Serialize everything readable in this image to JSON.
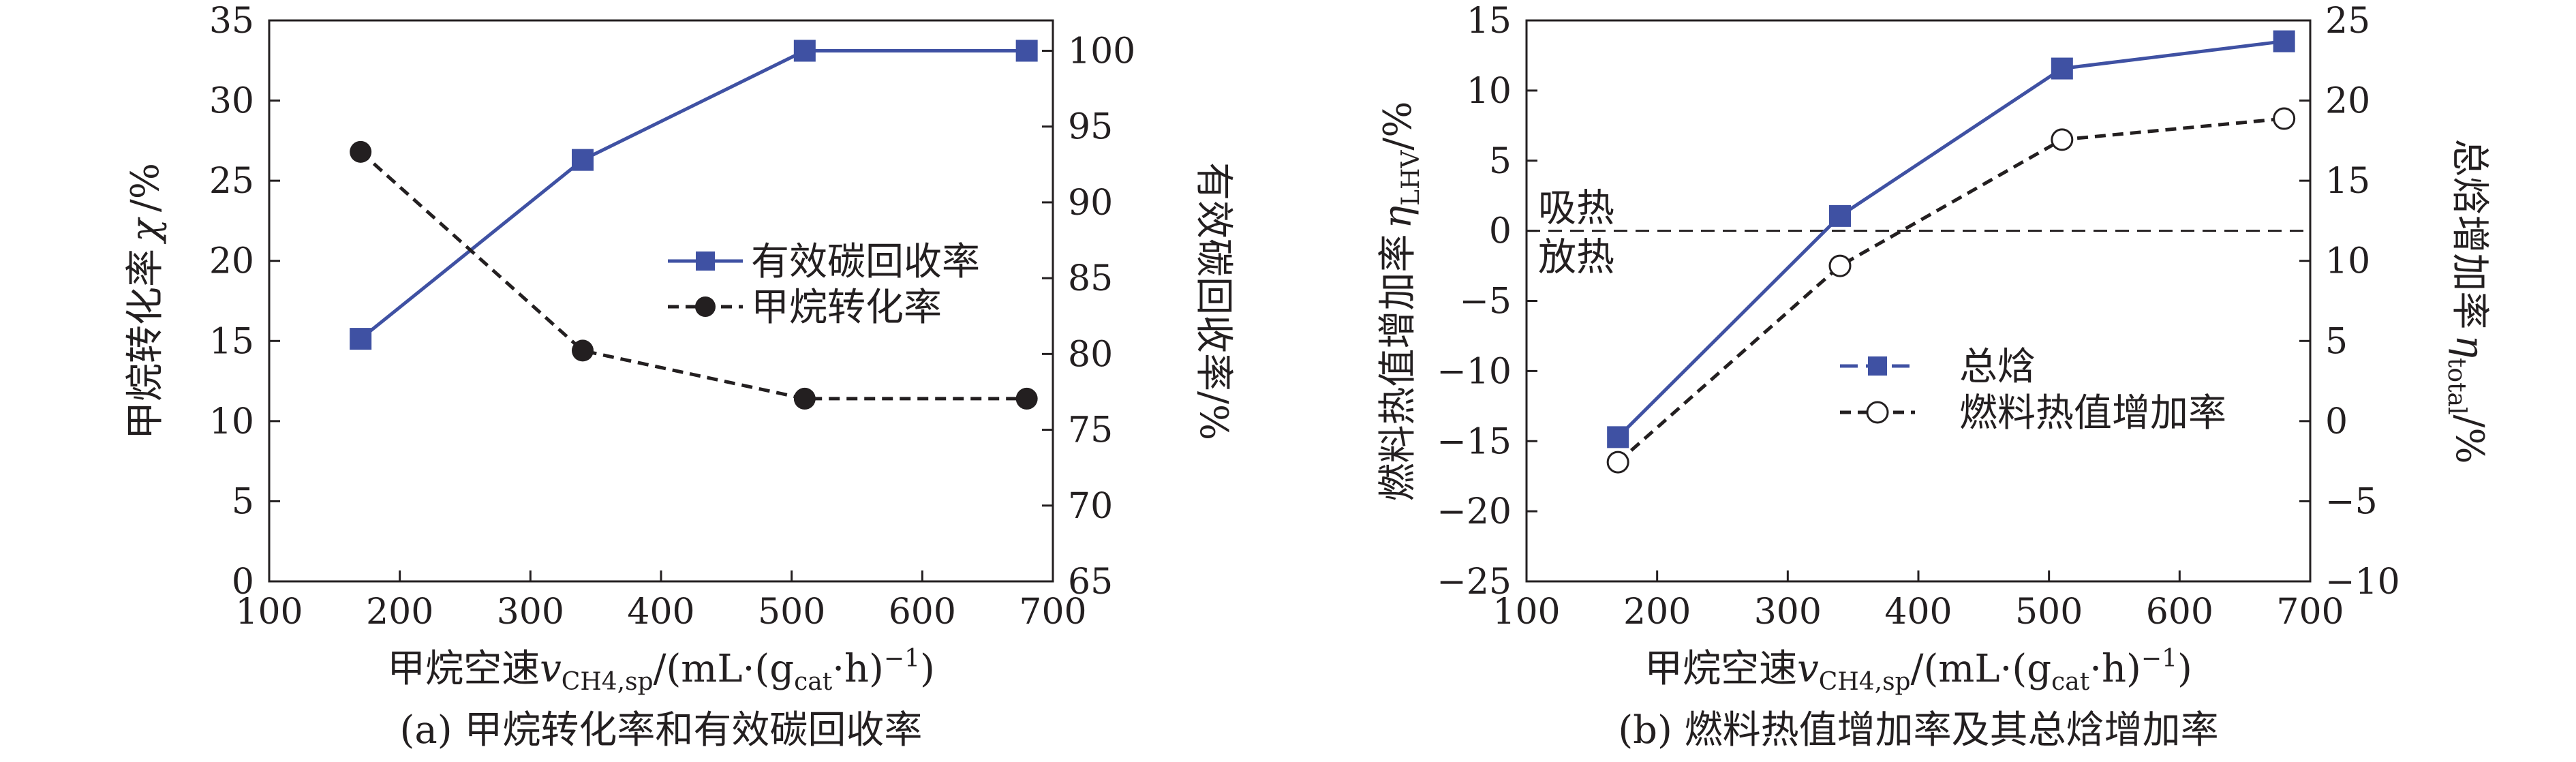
{
  "chart_data": [
    {
      "type": "line",
      "caption": "(a) 甲烷转化率和有效碳回收率",
      "xlabel": {
        "main": "甲烷空速",
        "var": "v",
        "sub": "CH4,sp",
        "unit_pre": "/(mL·(g",
        "unit_sub": "cat",
        "unit_mid": "·h)",
        "unit_sup": "−1",
        "unit_post": ")"
      },
      "ylabel_left": {
        "main": "甲烷转化率",
        "var": "χ",
        "unit": "/%"
      },
      "ylabel_right": "有效碳回收率/%",
      "xlim": [
        100,
        700
      ],
      "xticks": [
        100,
        200,
        300,
        400,
        500,
        600,
        700
      ],
      "ylim_left": [
        0,
        35
      ],
      "yticks_left": [
        0,
        5,
        10,
        15,
        20,
        25,
        30,
        35
      ],
      "ylim_right": [
        65,
        102
      ],
      "yticks_right": [
        65,
        70,
        75,
        80,
        85,
        90,
        95,
        100
      ],
      "x": [
        170,
        340,
        510,
        680
      ],
      "series": [
        {
          "name": "有效碳回收率",
          "axis": "right",
          "marker": "square",
          "color": "#3f51a3",
          "dashed": false,
          "values": [
            81.0,
            92.8,
            100.0,
            100.0
          ]
        },
        {
          "name": "甲烷转化率",
          "axis": "left",
          "marker": "circle-filled",
          "color": "#231f20",
          "dashed": true,
          "values": [
            26.8,
            14.4,
            11.4,
            11.4
          ]
        }
      ]
    },
    {
      "type": "line",
      "caption": "(b) 燃料热值增加率及其总焓增加率",
      "xlabel": {
        "main": "甲烷空速",
        "var": "v",
        "sub": "CH4,sp",
        "unit_pre": "/(mL·(g",
        "unit_sub": "cat",
        "unit_mid": "·h)",
        "unit_sup": "−1",
        "unit_post": ")"
      },
      "ylabel_left": {
        "main": "燃料热值增加率",
        "var": "η",
        "sub": "LHV",
        "unit": "/%"
      },
      "ylabel_right": {
        "main": "总焓增加率",
        "var": "η",
        "sub": "total",
        "unit": "/%"
      },
      "xlim": [
        100,
        700
      ],
      "xticks": [
        100,
        200,
        300,
        400,
        500,
        600,
        700
      ],
      "ylim_left": [
        -25,
        15
      ],
      "yticks_left": [
        -25,
        -20,
        -15,
        -10,
        -5,
        0,
        5,
        10,
        15
      ],
      "ylim_right": [
        -10,
        25
      ],
      "yticks_right": [
        -10,
        -5,
        0,
        5,
        10,
        15,
        20,
        25
      ],
      "zero_line": {
        "value": 0,
        "above": "吸热",
        "below": "放热"
      },
      "x": [
        170,
        340,
        510,
        680
      ],
      "series": [
        {
          "name": "总焓",
          "axis": "right",
          "marker": "square",
          "color": "#3f51a3",
          "dashed": false,
          "values": [
            -1.0,
            12.8,
            22.0,
            23.7
          ]
        },
        {
          "name": "燃料热值增加率",
          "axis": "left",
          "marker": "circle-open",
          "color": "#231f20",
          "dashed": true,
          "values": [
            -16.5,
            -2.5,
            6.5,
            8.0
          ]
        }
      ]
    }
  ],
  "colors": {
    "axis": "#231f20",
    "series_blue": "#3f51a3",
    "series_black": "#231f20"
  }
}
